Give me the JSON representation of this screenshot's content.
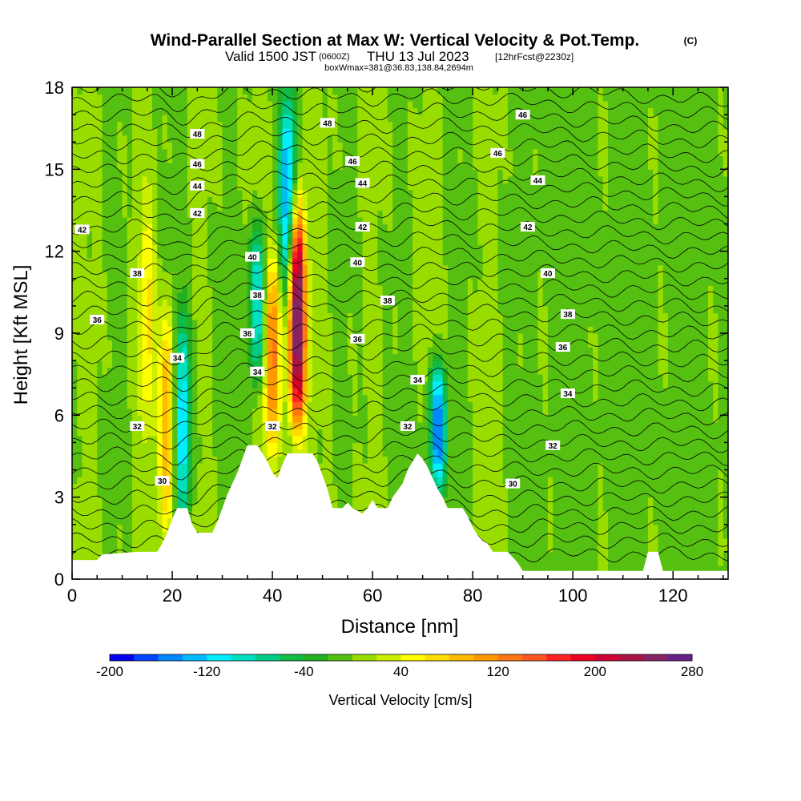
{
  "chart_data": {
    "type": "heatmap",
    "title": "Wind-Parallel Section at Max W: Vertical Velocity & Pot.Temp.",
    "copyright_mark": "(C)",
    "subtitle": {
      "valid_prefix": "Valid 1500 JST",
      "utc_time": "(0600Z)",
      "date": "THU 13 Jul 2023",
      "forecast": "[12hrFcst@2230z]"
    },
    "box_info": "boxWmax=381@36.83,138.84,2694m",
    "xlabel": "Distance [nm]",
    "ylabel": "Height [Kft MSL]",
    "xlim": [
      0,
      131
    ],
    "ylim": [
      0,
      18
    ],
    "x_ticks": [
      "0",
      "20",
      "40",
      "60",
      "80",
      "100",
      "120"
    ],
    "x_tick_values": [
      0,
      20,
      40,
      60,
      80,
      100,
      120
    ],
    "y_ticks": [
      "0",
      "3",
      "6",
      "9",
      "12",
      "15",
      "18"
    ],
    "y_tick_values": [
      0,
      3,
      6,
      9,
      12,
      15,
      18
    ],
    "colorbar": {
      "label": "Vertical Velocity [cm/s]",
      "tick_labels": [
        "-200",
        "-120",
        "-40",
        "40",
        "120",
        "200",
        "280"
      ],
      "tick_values": [
        -200,
        -120,
        -40,
        40,
        120,
        200,
        280
      ],
      "bounds": [
        -200,
        -180,
        -160,
        -140,
        -120,
        -100,
        -80,
        -60,
        -40,
        -20,
        0,
        20,
        40,
        60,
        80,
        100,
        120,
        140,
        160,
        180,
        200,
        220,
        240,
        260,
        280
      ],
      "colors": [
        "#0000ee",
        "#0044ff",
        "#0088ff",
        "#00bbff",
        "#00eeff",
        "#00e0c0",
        "#00cc88",
        "#11bb44",
        "#22b022",
        "#55c011",
        "#99dd00",
        "#ccee00",
        "#ffff00",
        "#ffdd00",
        "#ffbb00",
        "#ff9900",
        "#ff7711",
        "#ff5522",
        "#ff2222",
        "#ee0022",
        "#cc0033",
        "#aa1144",
        "#882266",
        "#662288"
      ]
    },
    "terrain": [
      [
        0,
        0.7
      ],
      [
        5,
        0.7
      ],
      [
        6,
        0.9
      ],
      [
        13,
        1.0
      ],
      [
        17,
        1.0
      ],
      [
        18,
        1.3
      ],
      [
        19,
        1.7
      ],
      [
        20,
        2.2
      ],
      [
        21,
        2.6
      ],
      [
        23,
        2.6
      ],
      [
        24,
        2.0
      ],
      [
        25,
        1.7
      ],
      [
        28,
        1.7
      ],
      [
        29,
        2.1
      ],
      [
        30,
        2.6
      ],
      [
        31,
        3.1
      ],
      [
        32,
        3.5
      ],
      [
        33,
        3.9
      ],
      [
        34,
        4.4
      ],
      [
        35,
        4.9
      ],
      [
        37,
        4.9
      ],
      [
        38,
        4.6
      ],
      [
        39,
        4.3
      ],
      [
        40,
        3.9
      ],
      [
        41,
        3.7
      ],
      [
        42,
        4.2
      ],
      [
        43,
        4.6
      ],
      [
        48,
        4.6
      ],
      [
        49,
        4.3
      ],
      [
        50,
        3.8
      ],
      [
        51,
        3.3
      ],
      [
        52,
        2.6
      ],
      [
        54,
        2.6
      ],
      [
        55,
        2.8
      ],
      [
        56,
        2.6
      ],
      [
        58,
        2.4
      ],
      [
        59,
        2.6
      ],
      [
        60,
        2.9
      ],
      [
        61,
        2.6
      ],
      [
        63,
        2.6
      ],
      [
        64,
        3.0
      ],
      [
        66,
        3.5
      ],
      [
        67,
        4.0
      ],
      [
        68,
        4.3
      ],
      [
        69,
        4.6
      ],
      [
        70,
        4.4
      ],
      [
        71,
        4.1
      ],
      [
        72,
        3.7
      ],
      [
        73,
        3.3
      ],
      [
        74,
        3.0
      ],
      [
        75,
        2.6
      ],
      [
        78,
        2.6
      ],
      [
        79,
        2.3
      ],
      [
        80,
        1.9
      ],
      [
        81,
        1.6
      ],
      [
        82,
        1.4
      ],
      [
        83,
        1.3
      ],
      [
        84,
        1.0
      ],
      [
        87,
        1.0
      ],
      [
        88,
        0.8
      ],
      [
        89,
        0.6
      ],
      [
        90,
        0.3
      ],
      [
        114,
        0.3
      ],
      [
        115,
        1.0
      ],
      [
        117,
        1.0
      ],
      [
        118,
        0.3
      ],
      [
        131,
        0.3
      ]
    ],
    "updraft_cores": [
      {
        "x": 45,
        "ytop": 12.8,
        "ybot": 6.4,
        "w": 280
      },
      {
        "x": 40,
        "ytop": 11.0,
        "ybot": 5.2,
        "w": 130
      },
      {
        "x": 19,
        "ytop": 9.0,
        "ybot": 2.6,
        "w": 110
      },
      {
        "x": 15,
        "ytop": 13.0,
        "ybot": 6.0,
        "w": 60
      }
    ],
    "downdraft_cores": [
      {
        "x": 43,
        "ytop": 17.0,
        "ybot": 11.5,
        "w": -140
      },
      {
        "x": 37,
        "ytop": 12.0,
        "ybot": 8.0,
        "w": -110
      },
      {
        "x": 22,
        "ytop": 9.0,
        "ybot": 2.6,
        "w": -120
      },
      {
        "x": 73,
        "ytop": 7.0,
        "ybot": 4.0,
        "w": -160
      }
    ],
    "theta_contours": {
      "units": "K",
      "labels": [
        {
          "text": "30",
          "x": 18,
          "y": 3.6
        },
        {
          "text": "30",
          "x": 88,
          "y": 3.5
        },
        {
          "text": "32",
          "x": 13,
          "y": 5.6
        },
        {
          "text": "32",
          "x": 40,
          "y": 5.6
        },
        {
          "text": "32",
          "x": 67,
          "y": 5.6
        },
        {
          "text": "32",
          "x": 96,
          "y": 4.9
        },
        {
          "text": "34",
          "x": 21,
          "y": 8.1
        },
        {
          "text": "34",
          "x": 37,
          "y": 7.6
        },
        {
          "text": "34",
          "x": 69,
          "y": 7.3
        },
        {
          "text": "34",
          "x": 99,
          "y": 6.8
        },
        {
          "text": "36",
          "x": 5,
          "y": 9.5
        },
        {
          "text": "36",
          "x": 35,
          "y": 9.0
        },
        {
          "text": "36",
          "x": 57,
          "y": 8.8
        },
        {
          "text": "36",
          "x": 98,
          "y": 8.5
        },
        {
          "text": "38",
          "x": 13,
          "y": 11.2
        },
        {
          "text": "38",
          "x": 37,
          "y": 10.4
        },
        {
          "text": "38",
          "x": 63,
          "y": 10.2
        },
        {
          "text": "38",
          "x": 99,
          "y": 9.7
        },
        {
          "text": "40",
          "x": 36,
          "y": 11.8
        },
        {
          "text": "40",
          "x": 57,
          "y": 11.6
        },
        {
          "text": "40",
          "x": 95,
          "y": 11.2
        },
        {
          "text": "42",
          "x": 2,
          "y": 12.8
        },
        {
          "text": "42",
          "x": 25,
          "y": 13.4
        },
        {
          "text": "42",
          "x": 58,
          "y": 12.9
        },
        {
          "text": "42",
          "x": 91,
          "y": 12.9
        },
        {
          "text": "44",
          "x": 25,
          "y": 14.4
        },
        {
          "text": "44",
          "x": 58,
          "y": 14.5
        },
        {
          "text": "44",
          "x": 93,
          "y": 14.6
        },
        {
          "text": "46",
          "x": 25,
          "y": 15.2
        },
        {
          "text": "46",
          "x": 56,
          "y": 15.3
        },
        {
          "text": "46",
          "x": 85,
          "y": 15.6
        },
        {
          "text": "48",
          "x": 25,
          "y": 16.3
        },
        {
          "text": "48",
          "x": 51,
          "y": 16.7
        },
        {
          "text": "46",
          "x": 90,
          "y": 17.0
        }
      ]
    }
  }
}
